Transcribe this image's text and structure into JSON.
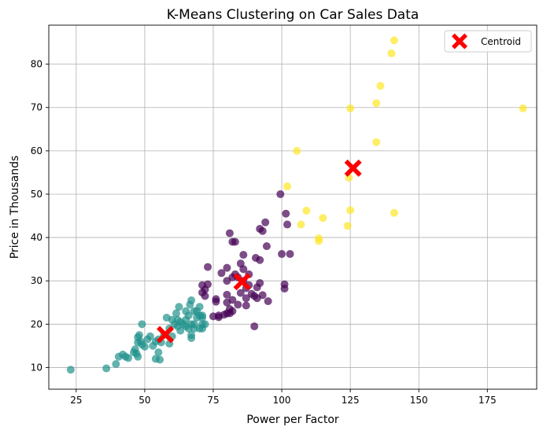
{
  "chart_data": {
    "type": "scatter",
    "title": "K-Means Clustering on Car Sales Data",
    "xlabel": "Power per Factor",
    "ylabel": "Price in Thousands",
    "xlim": [
      15,
      193
    ],
    "ylim": [
      5,
      89
    ],
    "xticks": [
      25,
      50,
      75,
      100,
      125,
      150,
      175
    ],
    "yticks": [
      10,
      20,
      30,
      40,
      50,
      60,
      70,
      80
    ],
    "grid": true,
    "legend": {
      "placement": "top-right",
      "entries": [
        "Centroid"
      ]
    },
    "colors": {
      "cluster_0": "#440154",
      "cluster_1": "#21918c",
      "cluster_2": "#fde725",
      "centroid": "#ff0000"
    },
    "series": [
      {
        "cluster": 0,
        "points": [
          [
            99.5,
            50.0
          ],
          [
            101.5,
            45.5
          ],
          [
            102,
            43
          ],
          [
            94,
            43.5
          ],
          [
            92,
            42
          ],
          [
            93,
            41.5
          ],
          [
            81,
            41
          ],
          [
            82,
            39
          ],
          [
            83,
            39
          ],
          [
            94.5,
            38
          ],
          [
            100,
            36.2
          ],
          [
            103,
            36.2
          ],
          [
            86,
            36
          ],
          [
            90.5,
            35.3
          ],
          [
            92,
            34.8
          ],
          [
            85,
            34
          ],
          [
            73,
            33.2
          ],
          [
            80,
            33
          ],
          [
            86,
            32.7
          ],
          [
            78,
            31.8
          ],
          [
            83,
            31.5
          ],
          [
            88,
            31.5
          ],
          [
            82,
            30.8
          ],
          [
            84,
            30.8
          ],
          [
            80,
            30
          ],
          [
            86,
            30
          ],
          [
            71,
            29
          ],
          [
            73,
            29.2
          ],
          [
            88,
            29
          ],
          [
            92,
            29.5
          ],
          [
            101,
            29.2
          ],
          [
            72,
            28
          ],
          [
            87,
            28.3
          ],
          [
            91,
            28.5
          ],
          [
            101,
            28.2
          ],
          [
            71,
            27.3
          ],
          [
            85,
            27.2
          ],
          [
            89,
            27
          ],
          [
            93,
            26.7
          ],
          [
            72,
            26.5
          ],
          [
            80,
            26.8
          ],
          [
            90,
            26.5
          ],
          [
            87,
            26
          ],
          [
            91,
            26
          ],
          [
            76,
            25.8
          ],
          [
            82,
            25.6
          ],
          [
            95,
            25.3
          ],
          [
            76,
            25.2
          ],
          [
            80,
            25
          ],
          [
            84,
            24.5
          ],
          [
            87,
            24.3
          ],
          [
            81,
            23.5
          ],
          [
            82,
            23
          ],
          [
            80,
            22.5
          ],
          [
            77,
            22
          ],
          [
            79,
            22.2
          ],
          [
            81,
            22.5
          ],
          [
            75,
            21.8
          ],
          [
            77,
            21.6
          ],
          [
            90,
            19.5
          ]
        ]
      },
      {
        "cluster": 1,
        "points": [
          [
            23,
            9.5
          ],
          [
            36,
            9.8
          ],
          [
            39.5,
            10.8
          ],
          [
            40.5,
            12.5
          ],
          [
            42,
            13
          ],
          [
            43,
            12.5
          ],
          [
            44,
            12.2
          ],
          [
            46,
            13.5
          ],
          [
            46.5,
            14.2
          ],
          [
            47,
            13.2
          ],
          [
            47.5,
            12.5
          ],
          [
            47.5,
            15.8
          ],
          [
            47.5,
            17
          ],
          [
            48,
            17.5
          ],
          [
            48.5,
            16
          ],
          [
            49,
            20
          ],
          [
            49,
            15.3
          ],
          [
            50,
            14.8
          ],
          [
            51,
            16.5
          ],
          [
            52,
            17.2
          ],
          [
            53,
            15
          ],
          [
            54,
            16
          ],
          [
            54,
            12
          ],
          [
            55,
            16.5
          ],
          [
            55.5,
            11.8
          ],
          [
            55,
            13.5
          ],
          [
            56,
            15.8
          ],
          [
            57,
            17.5
          ],
          [
            58,
            21.5
          ],
          [
            59,
            15.5
          ],
          [
            59,
            19
          ],
          [
            60,
            21
          ],
          [
            60,
            17.2
          ],
          [
            61,
            20
          ],
          [
            61.5,
            22.5
          ],
          [
            62,
            21
          ],
          [
            62,
            19.5
          ],
          [
            62.5,
            24
          ],
          [
            63,
            18.5
          ],
          [
            63,
            20.5
          ],
          [
            64,
            20
          ],
          [
            65,
            21
          ],
          [
            65,
            19.5
          ],
          [
            65,
            23
          ],
          [
            66,
            19
          ],
          [
            66,
            22
          ],
          [
            66.5,
            24.5
          ],
          [
            67,
            20
          ],
          [
            67,
            16.8
          ],
          [
            67,
            17.5
          ],
          [
            67,
            25.5
          ],
          [
            68,
            20
          ],
          [
            68,
            19
          ],
          [
            68,
            23
          ],
          [
            69,
            21.5
          ],
          [
            69,
            23
          ],
          [
            70,
            22
          ],
          [
            70,
            24
          ],
          [
            70,
            19
          ],
          [
            71,
            20
          ],
          [
            71,
            19
          ],
          [
            72,
            20
          ],
          [
            71,
            22
          ],
          [
            71,
            21.5
          ]
        ]
      },
      {
        "cluster": 2,
        "points": [
          [
            141,
            85.5
          ],
          [
            140,
            82.5
          ],
          [
            136,
            75
          ],
          [
            134.5,
            71
          ],
          [
            125,
            69.8
          ],
          [
            188,
            69.8
          ],
          [
            134.5,
            62
          ],
          [
            105.5,
            60
          ],
          [
            102,
            51.8
          ],
          [
            124.5,
            53.8
          ],
          [
            109,
            46.2
          ],
          [
            125,
            46.3
          ],
          [
            141,
            45.7
          ],
          [
            115,
            44.5
          ],
          [
            107,
            43
          ],
          [
            124,
            42.7
          ],
          [
            113.5,
            39.8
          ],
          [
            113.5,
            39.2
          ]
        ]
      }
    ],
    "centroids": [
      [
        126,
        56
      ],
      [
        85.5,
        29.8
      ],
      [
        57.5,
        17.6
      ]
    ]
  }
}
